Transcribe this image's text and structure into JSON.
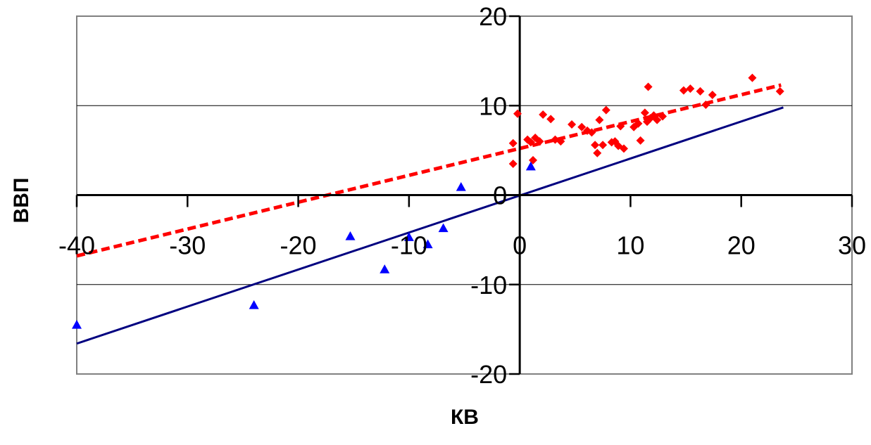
{
  "chart_data": {
    "type": "scatter",
    "title": "",
    "xlabel": "КВ",
    "ylabel": "ВВП",
    "xlim": [
      -40,
      30
    ],
    "ylim": [
      -20,
      20
    ],
    "x_ticks": [
      -40,
      -30,
      -20,
      -10,
      0,
      10,
      20,
      30
    ],
    "y_ticks": [
      -20,
      -10,
      0,
      10,
      20
    ],
    "x_tick_labels": [
      "-40",
      "-30",
      "-20",
      "-10",
      "0",
      "10",
      "20",
      "30"
    ],
    "y_tick_labels": [
      "-20",
      "-10",
      "0",
      "10",
      "20"
    ],
    "grid": "horizontal",
    "colors": {
      "series_red": "#ff0000",
      "series_blue": "#0000ff",
      "trend_red": "#ff0000",
      "trend_blue": "#000080",
      "plot_border": "#808080",
      "gridline": "#000000",
      "axis": "#000000"
    },
    "series": [
      {
        "marker": "diamond",
        "color": "#ff0000",
        "points": [
          [
            -0.2,
            9.1
          ],
          [
            -0.6,
            5.8
          ],
          [
            -0.6,
            3.5
          ],
          [
            0.7,
            6.2
          ],
          [
            1.0,
            5.9
          ],
          [
            1.2,
            3.9
          ],
          [
            1.4,
            6.4
          ],
          [
            1.8,
            6.0
          ],
          [
            2.1,
            9.0
          ],
          [
            2.8,
            8.5
          ],
          [
            3.2,
            6.2
          ],
          [
            3.7,
            6.0
          ],
          [
            4.7,
            7.9
          ],
          [
            5.6,
            7.6
          ],
          [
            6.1,
            7.2
          ],
          [
            6.5,
            7.0
          ],
          [
            6.8,
            5.6
          ],
          [
            7.0,
            4.7
          ],
          [
            7.2,
            8.4
          ],
          [
            7.5,
            5.6
          ],
          [
            7.8,
            9.5
          ],
          [
            8.3,
            5.9
          ],
          [
            8.6,
            6.0
          ],
          [
            8.9,
            5.5
          ],
          [
            9.1,
            7.7
          ],
          [
            9.4,
            5.2
          ],
          [
            10.3,
            7.6
          ],
          [
            10.7,
            8.0
          ],
          [
            10.9,
            6.1
          ],
          [
            11.3,
            9.2
          ],
          [
            11.5,
            8.2
          ],
          [
            11.6,
            12.1
          ],
          [
            11.8,
            8.6
          ],
          [
            12.1,
            8.9
          ],
          [
            12.4,
            8.4
          ],
          [
            12.9,
            8.8
          ],
          [
            14.8,
            11.7
          ],
          [
            15.4,
            11.9
          ],
          [
            16.3,
            11.6
          ],
          [
            16.8,
            10.1
          ],
          [
            17.4,
            11.2
          ],
          [
            21.0,
            13.1
          ],
          [
            23.5,
            11.6
          ]
        ]
      },
      {
        "marker": "triangle",
        "color": "#0000ff",
        "points": [
          [
            -40.0,
            -14.5
          ],
          [
            -24.0,
            -12.3
          ],
          [
            -15.3,
            -4.6
          ],
          [
            -12.2,
            -8.3
          ],
          [
            -10.0,
            -4.7
          ],
          [
            -8.3,
            -5.5
          ],
          [
            -6.9,
            -3.7
          ],
          [
            -5.3,
            0.9
          ],
          [
            1.0,
            3.2
          ]
        ]
      }
    ],
    "trendlines": [
      {
        "color": "#ff0000",
        "style": "dashed",
        "from": [
          -40,
          -6.8
        ],
        "to": [
          23.6,
          12.3
        ]
      },
      {
        "color": "#000080",
        "style": "solid",
        "from": [
          -40,
          -16.6
        ],
        "to": [
          23.8,
          9.8
        ]
      }
    ]
  }
}
